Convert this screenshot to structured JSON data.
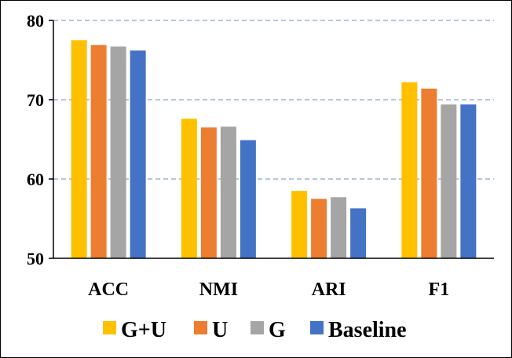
{
  "chart_data": {
    "type": "bar",
    "categories": [
      "ACC",
      "NMI",
      "ARI",
      "F1"
    ],
    "series": [
      {
        "name": "G+U",
        "color": "#FFC000",
        "values": [
          77.5,
          67.6,
          58.5,
          72.2
        ]
      },
      {
        "name": "U",
        "color": "#ED7D31",
        "values": [
          76.9,
          66.5,
          57.5,
          71.4
        ]
      },
      {
        "name": "G",
        "color": "#A5A5A5",
        "values": [
          76.7,
          66.6,
          57.7,
          69.4
        ]
      },
      {
        "name": "Baseline",
        "color": "#4472C4",
        "values": [
          76.2,
          64.9,
          56.3,
          69.4
        ]
      }
    ],
    "ylim": [
      50,
      80
    ],
    "yticks": [
      50,
      60,
      70,
      80
    ],
    "grid": true,
    "legend": "bottom"
  }
}
